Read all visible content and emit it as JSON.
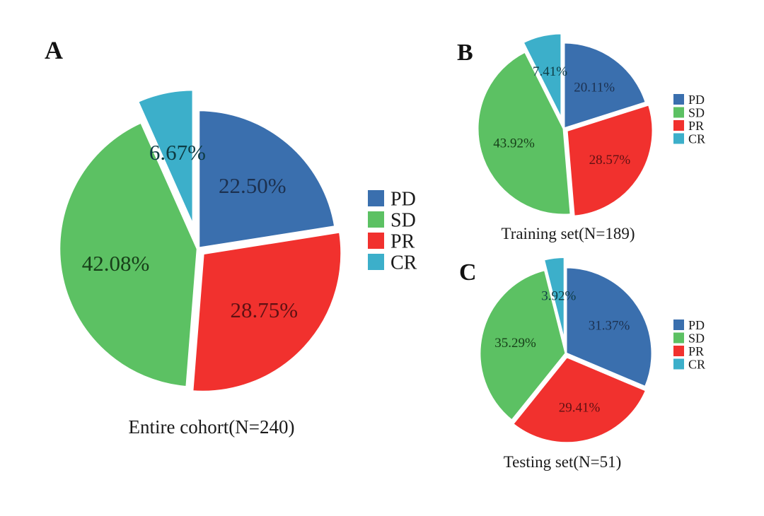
{
  "figure": {
    "description": "Three exploded pie charts of treatment response categories",
    "background": "#ffffff"
  },
  "colors": {
    "PD": "#3a6fae",
    "SD": "#5cc163",
    "PR": "#f1312e",
    "CR": "#3cafca"
  },
  "label_colors": {
    "PD": "#1c3150",
    "SD": "#174019",
    "PR": "#5f1113",
    "CR": "#0e3c44"
  },
  "legend_text_color": "#1a1a1a",
  "chart_data": [
    {
      "id": "A",
      "type": "pie",
      "panel_label": "A",
      "caption": "Entire cohort(N=240)",
      "n": 240,
      "start_angle": "12 o'clock",
      "direction": "clockwise",
      "legend_position": "right",
      "slices": [
        {
          "name": "PD",
          "value": 22.5,
          "label": "22.50%"
        },
        {
          "name": "PR",
          "value": 28.75,
          "label": "28.75%"
        },
        {
          "name": "SD",
          "value": 42.08,
          "label": "42.08%"
        },
        {
          "name": "CR",
          "value": 6.67,
          "label": "6.67%",
          "exploded": true
        }
      ],
      "legend": [
        "PD",
        "SD",
        "PR",
        "CR"
      ]
    },
    {
      "id": "B",
      "type": "pie",
      "panel_label": "B",
      "caption": "Training set(N=189)",
      "n": 189,
      "start_angle": "12 o'clock",
      "direction": "clockwise",
      "legend_position": "right",
      "slices": [
        {
          "name": "PD",
          "value": 20.11,
          "label": "20.11%"
        },
        {
          "name": "PR",
          "value": 28.57,
          "label": "28.57%"
        },
        {
          "name": "SD",
          "value": 43.92,
          "label": "43.92%"
        },
        {
          "name": "CR",
          "value": 7.41,
          "label": "7.41%",
          "exploded": true
        }
      ],
      "legend": [
        "PD",
        "SD",
        "PR",
        "CR"
      ]
    },
    {
      "id": "C",
      "type": "pie",
      "panel_label": "C",
      "caption": "Testing set(N=51)",
      "n": 51,
      "start_angle": "12 o'clock",
      "direction": "clockwise",
      "legend_position": "right",
      "slices": [
        {
          "name": "PD",
          "value": 31.37,
          "label": "31.37%"
        },
        {
          "name": "PR",
          "value": 29.41,
          "label": "29.41%"
        },
        {
          "name": "SD",
          "value": 35.29,
          "label": "35.29%"
        },
        {
          "name": "CR",
          "value": 3.92,
          "label": "3.92%",
          "exploded": true
        }
      ],
      "legend": [
        "PD",
        "SD",
        "PR",
        "CR"
      ]
    }
  ]
}
